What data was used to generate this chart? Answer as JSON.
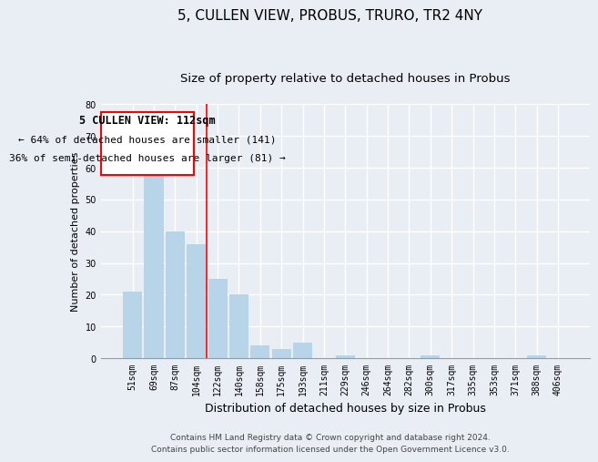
{
  "title": "5, CULLEN VIEW, PROBUS, TRURO, TR2 4NY",
  "subtitle": "Size of property relative to detached houses in Probus",
  "xlabel": "Distribution of detached houses by size in Probus",
  "ylabel": "Number of detached properties",
  "bar_labels": [
    "51sqm",
    "69sqm",
    "87sqm",
    "104sqm",
    "122sqm",
    "140sqm",
    "158sqm",
    "175sqm",
    "193sqm",
    "211sqm",
    "229sqm",
    "246sqm",
    "264sqm",
    "282sqm",
    "300sqm",
    "317sqm",
    "335sqm",
    "353sqm",
    "371sqm",
    "388sqm",
    "406sqm"
  ],
  "bar_values": [
    21,
    64,
    40,
    36,
    25,
    20,
    4,
    3,
    5,
    0,
    1,
    0,
    0,
    0,
    1,
    0,
    0,
    0,
    0,
    1,
    0
  ],
  "bar_color": "#b8d4e8",
  "red_line_x": 3.5,
  "annotation_text_line1": "5 CULLEN VIEW: 112sqm",
  "annotation_text_line2": "← 64% of detached houses are smaller (141)",
  "annotation_text_line3": "36% of semi-detached houses are larger (81) →",
  "ylim": [
    0,
    80
  ],
  "yticks": [
    0,
    10,
    20,
    30,
    40,
    50,
    60,
    70,
    80
  ],
  "footer_line1": "Contains HM Land Registry data © Crown copyright and database right 2024.",
  "footer_line2": "Contains public sector information licensed under the Open Government Licence v3.0.",
  "background_color": "#e8eef4",
  "plot_bg_color": "#e8eef4",
  "grid_color": "#ffffff",
  "title_fontsize": 11,
  "subtitle_fontsize": 9.5,
  "xlabel_fontsize": 9,
  "ylabel_fontsize": 8,
  "tick_fontsize": 7,
  "annotation_fontsize": 8.5,
  "footer_fontsize": 6.5
}
